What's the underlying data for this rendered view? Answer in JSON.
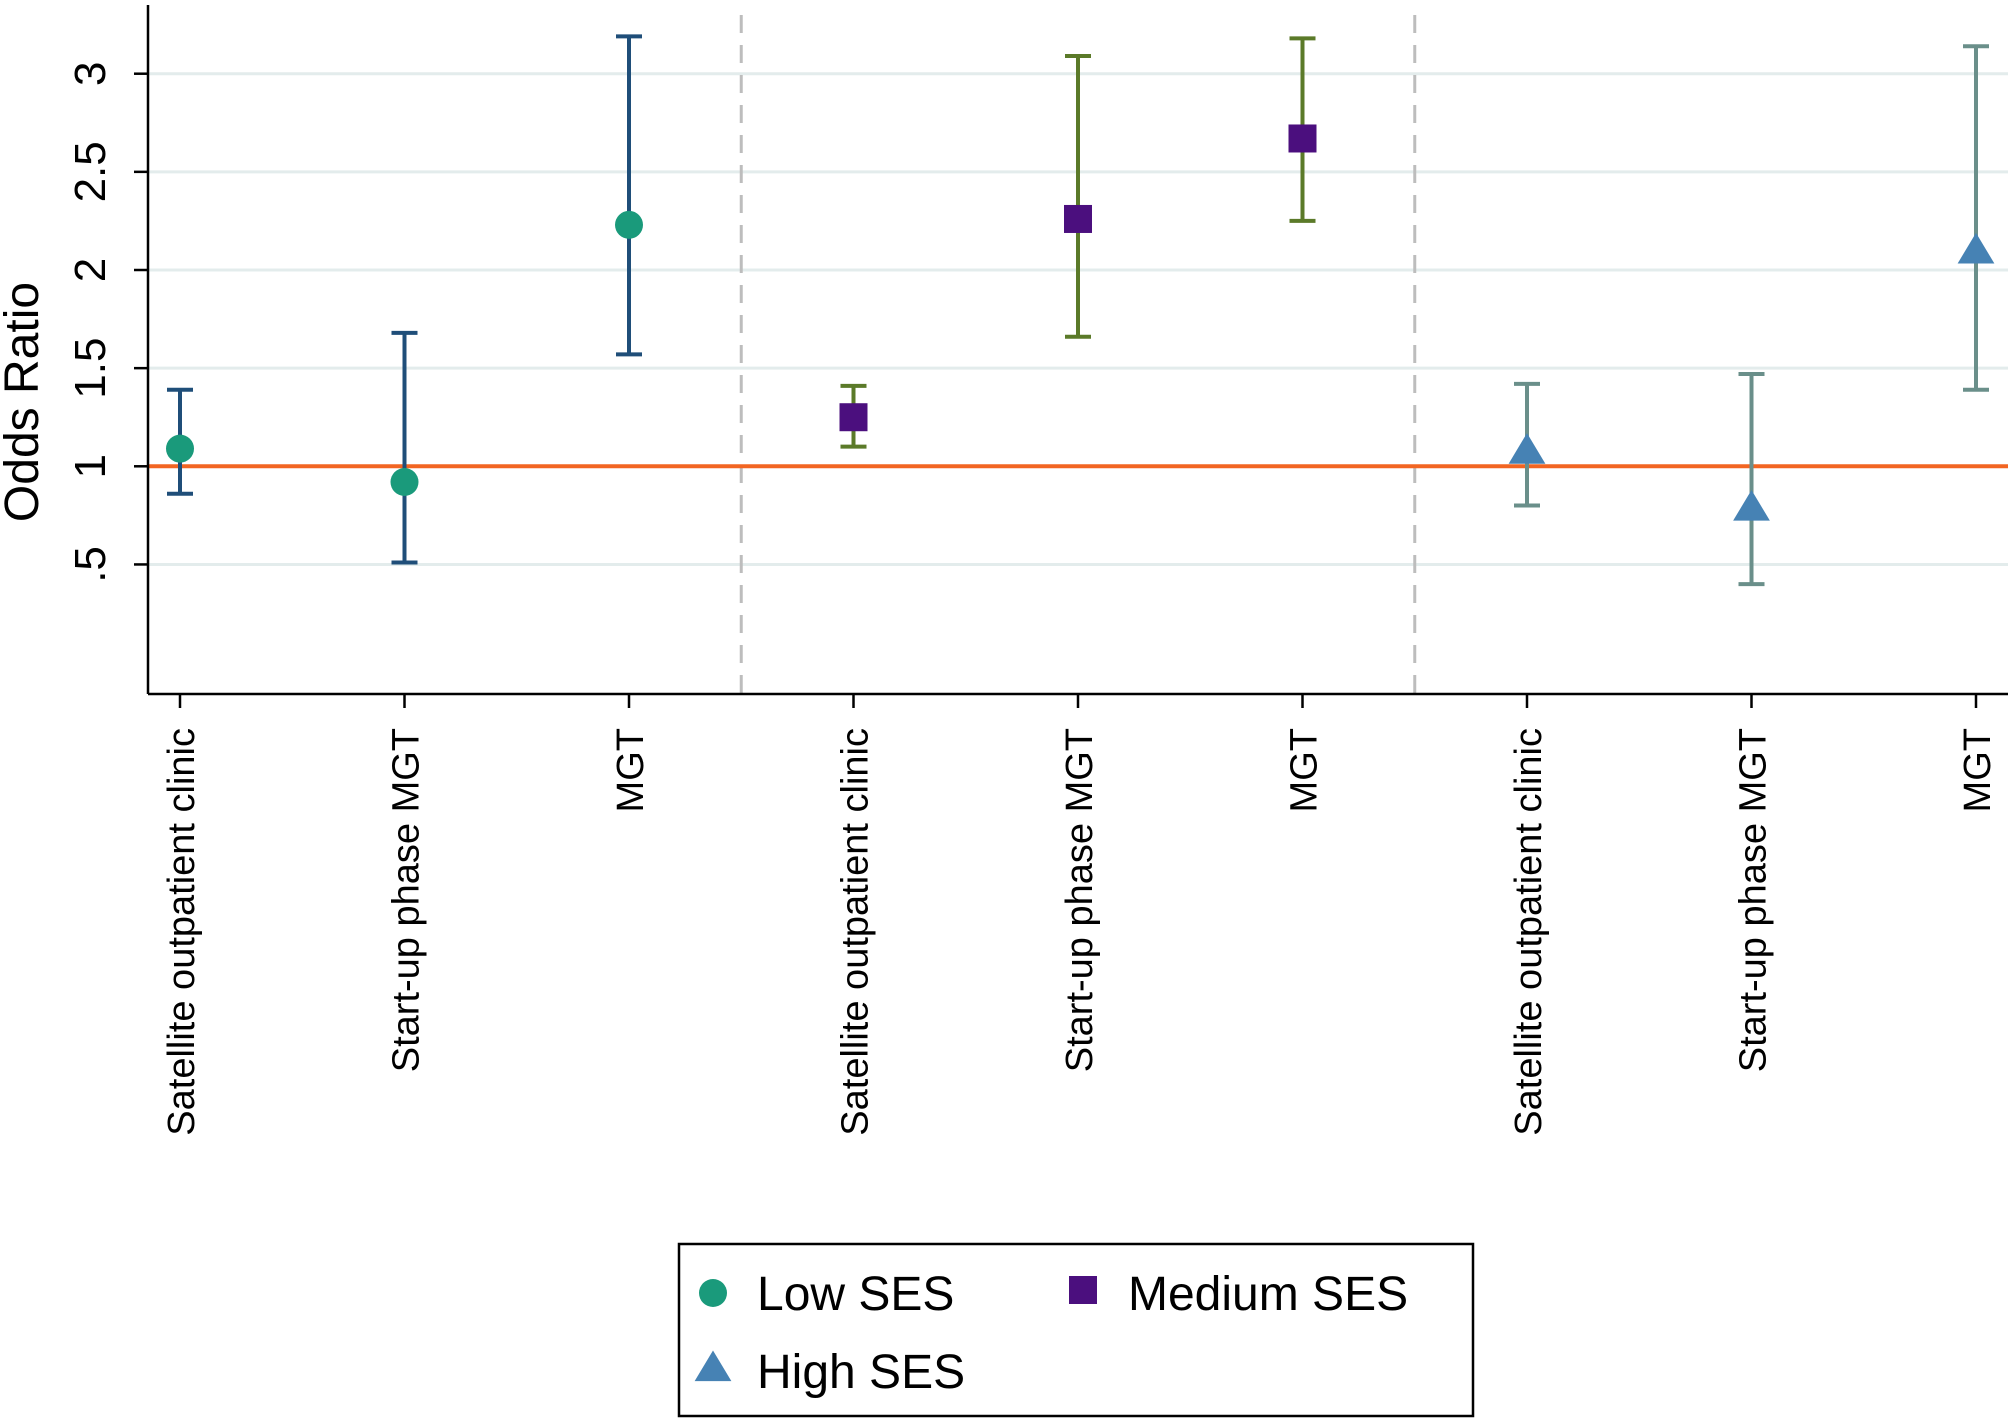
{
  "chart_data": {
    "type": "scatter",
    "ylabel": "Odds Ratio",
    "ylim": [
      -0.16,
      3.35
    ],
    "yticks": [
      {
        "value": 0.5,
        "label": ".5"
      },
      {
        "value": 1,
        "label": "1"
      },
      {
        "value": 1.5,
        "label": "1.5"
      },
      {
        "value": 2,
        "label": "2"
      },
      {
        "value": 2.5,
        "label": "2.5"
      },
      {
        "value": 3,
        "label": "3"
      }
    ],
    "grid": true,
    "reference_line": {
      "y": 1,
      "color": "#f26522"
    },
    "group_separators": true,
    "categories": [
      "Satellite outpatient clinic",
      "Start-up phase MGT",
      "MGT",
      "Satellite outpatient clinic",
      "Start-up phase MGT",
      "MGT",
      "Satellite outpatient clinic",
      "Start-up phase MGT",
      "MGT"
    ],
    "series": [
      {
        "name": "Low SES",
        "marker": "circle",
        "color": "#1a9a7b",
        "ci_color": "#1f4e79",
        "points": [
          {
            "category_index": 0,
            "estimate": 1.09,
            "lower": 0.86,
            "upper": 1.39
          },
          {
            "category_index": 1,
            "estimate": 0.92,
            "lower": 0.51,
            "upper": 1.68
          },
          {
            "category_index": 2,
            "estimate": 2.23,
            "lower": 1.57,
            "upper": 3.19
          }
        ]
      },
      {
        "name": "Medium SES",
        "marker": "square",
        "color": "#4b0f7e",
        "ci_color": "#5b7a29",
        "points": [
          {
            "category_index": 3,
            "estimate": 1.25,
            "lower": 1.1,
            "upper": 1.41
          },
          {
            "category_index": 4,
            "estimate": 2.26,
            "lower": 1.66,
            "upper": 3.09
          },
          {
            "category_index": 5,
            "estimate": 2.67,
            "lower": 2.25,
            "upper": 3.18
          }
        ]
      },
      {
        "name": "High SES",
        "marker": "triangle",
        "color": "#4682b4",
        "ci_color": "#6a8f8a",
        "points": [
          {
            "category_index": 6,
            "estimate": 1.08,
            "lower": 0.8,
            "upper": 1.42
          },
          {
            "category_index": 7,
            "estimate": 0.79,
            "lower": 0.4,
            "upper": 1.47
          },
          {
            "category_index": 8,
            "estimate": 2.1,
            "lower": 1.39,
            "upper": 3.14
          }
        ]
      }
    ],
    "legend": {
      "placement": "bottom-center",
      "entries": [
        "Low SES",
        "Medium SES",
        "High SES"
      ]
    },
    "colors": {
      "grid": "#e3ecec",
      "separator": "#bdbdbd",
      "axis": "#000000"
    }
  }
}
